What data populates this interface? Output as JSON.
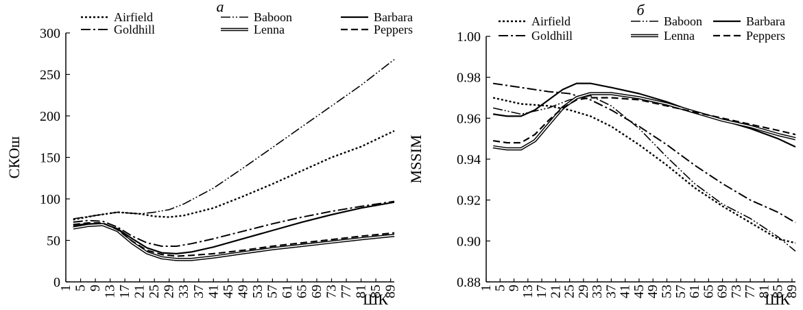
{
  "chart_data": [
    {
      "type": "line",
      "panel_label": "а",
      "xlabel": "ШК",
      "ylabel": "СКОш",
      "x_ticks": [
        1,
        5,
        9,
        13,
        17,
        21,
        25,
        29,
        33,
        37,
        41,
        45,
        49,
        53,
        57,
        61,
        65,
        69,
        73,
        77,
        81,
        85,
        89
      ],
      "xlim": [
        1,
        90
      ],
      "ylim": [
        0,
        300
      ],
      "y_ticks": [
        0,
        50,
        100,
        150,
        200,
        250,
        300
      ],
      "grid": false,
      "legend": {
        "placement": "top",
        "columns": 3
      },
      "series": [
        {
          "name": "Airfield",
          "style": "dotted",
          "points": [
            [
              3,
              75
            ],
            [
              9,
              80
            ],
            [
              15,
              84
            ],
            [
              21,
              82
            ],
            [
              25,
              79
            ],
            [
              29,
              78
            ],
            [
              33,
              80
            ],
            [
              41,
              89
            ],
            [
              49,
              103
            ],
            [
              57,
              118
            ],
            [
              65,
              134
            ],
            [
              73,
              150
            ],
            [
              81,
              163
            ],
            [
              90,
              182
            ]
          ]
        },
        {
          "name": "Baboon",
          "style": "dash-dot-dot",
          "points": [
            [
              3,
              76
            ],
            [
              9,
              80
            ],
            [
              15,
              84
            ],
            [
              21,
              82
            ],
            [
              25,
              84
            ],
            [
              29,
              87
            ],
            [
              33,
              94
            ],
            [
              41,
              113
            ],
            [
              49,
              137
            ],
            [
              57,
              162
            ],
            [
              65,
              187
            ],
            [
              73,
              212
            ],
            [
              81,
              237
            ],
            [
              90,
              268
            ]
          ]
        },
        {
          "name": "Barbara",
          "style": "solid",
          "points": [
            [
              3,
              68
            ],
            [
              7,
              70
            ],
            [
              11,
              70
            ],
            [
              15,
              64
            ],
            [
              19,
              52
            ],
            [
              23,
              41
            ],
            [
              27,
              35
            ],
            [
              31,
              34
            ],
            [
              35,
              36
            ],
            [
              41,
              42
            ],
            [
              49,
              52
            ],
            [
              57,
              62
            ],
            [
              65,
              72
            ],
            [
              73,
              81
            ],
            [
              81,
              89
            ],
            [
              90,
              96
            ]
          ]
        },
        {
          "name": "Goldhill",
          "style": "dash-dot",
          "points": [
            [
              3,
              72
            ],
            [
              7,
              74
            ],
            [
              11,
              73
            ],
            [
              15,
              66
            ],
            [
              19,
              55
            ],
            [
              23,
              47
            ],
            [
              27,
              43
            ],
            [
              31,
              43
            ],
            [
              35,
              46
            ],
            [
              41,
              52
            ],
            [
              49,
              61
            ],
            [
              57,
              70
            ],
            [
              65,
              78
            ],
            [
              73,
              85
            ],
            [
              81,
              91
            ],
            [
              90,
              97
            ]
          ]
        },
        {
          "name": "Lenna",
          "style": "double",
          "points": [
            [
              3,
              65
            ],
            [
              7,
              68
            ],
            [
              11,
              69
            ],
            [
              15,
              62
            ],
            [
              19,
              47
            ],
            [
              23,
              35
            ],
            [
              27,
              29
            ],
            [
              31,
              27
            ],
            [
              35,
              27
            ],
            [
              41,
              30
            ],
            [
              49,
              35
            ],
            [
              57,
              40
            ],
            [
              65,
              44
            ],
            [
              73,
              48
            ],
            [
              81,
              52
            ],
            [
              90,
              56
            ]
          ]
        },
        {
          "name": "Peppers",
          "style": "dashed",
          "points": [
            [
              3,
              69
            ],
            [
              7,
              71
            ],
            [
              11,
              71
            ],
            [
              15,
              63
            ],
            [
              19,
              49
            ],
            [
              23,
              38
            ],
            [
              27,
              33
            ],
            [
              31,
              31
            ],
            [
              35,
              32
            ],
            [
              41,
              34
            ],
            [
              49,
              38
            ],
            [
              57,
              43
            ],
            [
              65,
              47
            ],
            [
              73,
              51
            ],
            [
              81,
              55
            ],
            [
              90,
              59
            ]
          ]
        }
      ]
    },
    {
      "type": "line",
      "panel_label": "б",
      "xlabel": "ШК",
      "ylabel": "MSSIM",
      "x_ticks": [
        1,
        5,
        9,
        13,
        17,
        21,
        25,
        29,
        33,
        37,
        41,
        45,
        49,
        53,
        57,
        61,
        65,
        69,
        73,
        77,
        81,
        85,
        89
      ],
      "xlim": [
        1,
        90
      ],
      "ylim": [
        0.88,
        1.0
      ],
      "y_ticks": [
        "0.88",
        "0.90",
        "0.92",
        "0.94",
        "0.96",
        "0.98",
        "1.00"
      ],
      "grid": false,
      "legend": {
        "placement": "top",
        "columns": 3
      },
      "series": [
        {
          "name": "Airfield",
          "style": "dotted",
          "points": [
            [
              3,
              0.97
            ],
            [
              11,
              0.967
            ],
            [
              19,
              0.966
            ],
            [
              25,
              0.964
            ],
            [
              31,
              0.961
            ],
            [
              37,
              0.956
            ],
            [
              45,
              0.947
            ],
            [
              53,
              0.937
            ],
            [
              61,
              0.926
            ],
            [
              69,
              0.917
            ],
            [
              77,
              0.909
            ],
            [
              85,
              0.901
            ],
            [
              90,
              0.899
            ]
          ]
        },
        {
          "name": "Baboon",
          "style": "dash-dot-dot",
          "points": [
            [
              3,
              0.965
            ],
            [
              11,
              0.962
            ],
            [
              19,
              0.965
            ],
            [
              25,
              0.969
            ],
            [
              31,
              0.971
            ],
            [
              37,
              0.966
            ],
            [
              45,
              0.955
            ],
            [
              53,
              0.941
            ],
            [
              61,
              0.928
            ],
            [
              69,
              0.918
            ],
            [
              77,
              0.911
            ],
            [
              85,
              0.902
            ],
            [
              90,
              0.895
            ]
          ]
        },
        {
          "name": "Barbara",
          "style": "solid",
          "points": [
            [
              3,
              0.962
            ],
            [
              7,
              0.961
            ],
            [
              11,
              0.961
            ],
            [
              15,
              0.964
            ],
            [
              19,
              0.969
            ],
            [
              23,
              0.974
            ],
            [
              27,
              0.977
            ],
            [
              31,
              0.977
            ],
            [
              37,
              0.975
            ],
            [
              45,
              0.972
            ],
            [
              53,
              0.968
            ],
            [
              61,
              0.963
            ],
            [
              69,
              0.959
            ],
            [
              77,
              0.955
            ],
            [
              85,
              0.95
            ],
            [
              90,
              0.946
            ]
          ]
        },
        {
          "name": "Goldhill",
          "style": "dash-dot",
          "points": [
            [
              3,
              0.977
            ],
            [
              11,
              0.975
            ],
            [
              19,
              0.973
            ],
            [
              25,
              0.972
            ],
            [
              31,
              0.969
            ],
            [
              37,
              0.964
            ],
            [
              45,
              0.956
            ],
            [
              53,
              0.947
            ],
            [
              61,
              0.937
            ],
            [
              69,
              0.928
            ],
            [
              77,
              0.92
            ],
            [
              85,
              0.914
            ],
            [
              90,
              0.909
            ]
          ]
        },
        {
          "name": "Lenna",
          "style": "double",
          "points": [
            [
              3,
              0.946
            ],
            [
              7,
              0.945
            ],
            [
              11,
              0.945
            ],
            [
              15,
              0.949
            ],
            [
              19,
              0.957
            ],
            [
              23,
              0.965
            ],
            [
              27,
              0.97
            ],
            [
              31,
              0.972
            ],
            [
              37,
              0.972
            ],
            [
              45,
              0.97
            ],
            [
              53,
              0.967
            ],
            [
              61,
              0.963
            ],
            [
              69,
              0.959
            ],
            [
              77,
              0.956
            ],
            [
              85,
              0.952
            ],
            [
              90,
              0.95
            ]
          ]
        },
        {
          "name": "Peppers",
          "style": "dashed",
          "points": [
            [
              3,
              0.949
            ],
            [
              7,
              0.948
            ],
            [
              11,
              0.948
            ],
            [
              15,
              0.952
            ],
            [
              19,
              0.959
            ],
            [
              23,
              0.965
            ],
            [
              27,
              0.969
            ],
            [
              31,
              0.97
            ],
            [
              37,
              0.97
            ],
            [
              45,
              0.969
            ],
            [
              53,
              0.966
            ],
            [
              61,
              0.963
            ],
            [
              69,
              0.96
            ],
            [
              77,
              0.957
            ],
            [
              85,
              0.954
            ],
            [
              90,
              0.952
            ]
          ]
        }
      ]
    }
  ]
}
